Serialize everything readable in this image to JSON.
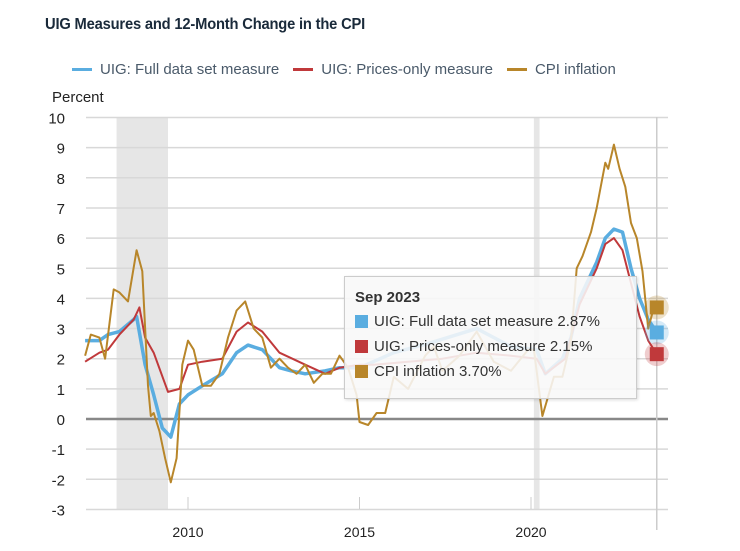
{
  "chart_data": {
    "type": "line",
    "title": "UIG Measures and 12-Month Change in the CPI",
    "ylabel": "Percent",
    "xlabel": "",
    "ylim": [
      -3,
      10
    ],
    "yticks": [
      "10",
      "9",
      "8",
      "7",
      "6",
      "5",
      "4",
      "3",
      "2",
      "1",
      "0",
      "-1",
      "-2",
      "-3"
    ],
    "xticks": [
      "2010",
      "2015",
      "2020"
    ],
    "xlim": [
      "2007-01",
      "2023-09"
    ],
    "grid": true,
    "legend_position": "top",
    "recessions": [
      [
        "2007-12",
        "2009-06"
      ],
      [
        "2020-02",
        "2020-04"
      ]
    ],
    "series": [
      {
        "name": "UIG: Full data set measure",
        "color": "#5aade0",
        "points": [
          [
            "2007-01",
            2.6
          ],
          [
            "2007-06",
            2.6
          ],
          [
            "2007-09",
            2.8
          ],
          [
            "2008-01",
            2.9
          ],
          [
            "2008-06",
            3.3
          ],
          [
            "2008-07",
            3.4
          ],
          [
            "2008-10",
            1.8
          ],
          [
            "2009-01",
            0.8
          ],
          [
            "2009-04",
            -0.3
          ],
          [
            "2009-07",
            -0.6
          ],
          [
            "2009-10",
            0.5
          ],
          [
            "2010-01",
            0.8
          ],
          [
            "2010-06",
            1.1
          ],
          [
            "2011-01",
            1.5
          ],
          [
            "2011-06",
            2.2
          ],
          [
            "2011-10",
            2.45
          ],
          [
            "2012-03",
            2.3
          ],
          [
            "2012-09",
            1.7
          ],
          [
            "2013-01",
            1.6
          ],
          [
            "2013-06",
            1.5
          ],
          [
            "2014-01",
            1.6
          ],
          [
            "2014-06",
            1.7
          ],
          [
            "2015-01",
            1.7
          ],
          [
            "2016-01",
            2.2
          ],
          [
            "2017-01",
            2.5
          ],
          [
            "2018-06",
            3.0
          ],
          [
            "2019-06",
            2.4
          ],
          [
            "2020-03",
            2.3
          ],
          [
            "2020-06",
            1.5
          ],
          [
            "2020-12",
            2.0
          ],
          [
            "2021-03",
            2.7
          ],
          [
            "2021-06",
            4.0
          ],
          [
            "2021-12",
            5.2
          ],
          [
            "2022-03",
            6.0
          ],
          [
            "2022-06",
            6.3
          ],
          [
            "2022-09",
            6.2
          ],
          [
            "2022-12",
            5.0
          ],
          [
            "2023-03",
            4.0
          ],
          [
            "2023-06",
            3.3
          ],
          [
            "2023-09",
            2.87
          ]
        ]
      },
      {
        "name": "UIG: Prices-only measure",
        "color": "#c0393b",
        "points": [
          [
            "2007-01",
            1.9
          ],
          [
            "2007-06",
            2.2
          ],
          [
            "2007-09",
            2.3
          ],
          [
            "2008-01",
            2.8
          ],
          [
            "2008-06",
            3.3
          ],
          [
            "2008-08",
            3.7
          ],
          [
            "2008-10",
            2.7
          ],
          [
            "2009-01",
            2.2
          ],
          [
            "2009-06",
            0.9
          ],
          [
            "2009-10",
            1.0
          ],
          [
            "2010-01",
            1.8
          ],
          [
            "2010-06",
            1.9
          ],
          [
            "2011-01",
            2.0
          ],
          [
            "2011-06",
            2.9
          ],
          [
            "2011-10",
            3.2
          ],
          [
            "2012-03",
            2.9
          ],
          [
            "2012-09",
            2.2
          ],
          [
            "2013-06",
            1.8
          ],
          [
            "2014-01",
            1.5
          ],
          [
            "2014-06",
            1.7
          ],
          [
            "2015-01",
            1.8
          ],
          [
            "2015-06",
            1.8
          ],
          [
            "2016-06",
            1.9
          ],
          [
            "2017-06",
            2.0
          ],
          [
            "2018-06",
            2.2
          ],
          [
            "2019-06",
            2.1
          ],
          [
            "2020-03",
            2.0
          ],
          [
            "2020-06",
            1.5
          ],
          [
            "2021-01",
            2.0
          ],
          [
            "2021-06",
            3.8
          ],
          [
            "2021-12",
            5.0
          ],
          [
            "2022-03",
            5.8
          ],
          [
            "2022-06",
            6.0
          ],
          [
            "2022-09",
            5.6
          ],
          [
            "2022-12",
            4.5
          ],
          [
            "2023-03",
            3.4
          ],
          [
            "2023-06",
            2.6
          ],
          [
            "2023-09",
            2.15
          ]
        ]
      },
      {
        "name": "CPI inflation",
        "color": "#b8862a",
        "points": [
          [
            "2007-01",
            2.1
          ],
          [
            "2007-03",
            2.8
          ],
          [
            "2007-06",
            2.7
          ],
          [
            "2007-08",
            2.0
          ],
          [
            "2007-11",
            4.3
          ],
          [
            "2008-01",
            4.2
          ],
          [
            "2008-04",
            3.9
          ],
          [
            "2008-07",
            5.6
          ],
          [
            "2008-09",
            4.9
          ],
          [
            "2008-11",
            1.1
          ],
          [
            "2008-12",
            0.1
          ],
          [
            "2009-01",
            0.2
          ],
          [
            "2009-03",
            -0.4
          ],
          [
            "2009-05",
            -1.3
          ],
          [
            "2009-07",
            -2.1
          ],
          [
            "2009-09",
            -1.3
          ],
          [
            "2009-11",
            1.8
          ],
          [
            "2010-01",
            2.6
          ],
          [
            "2010-03",
            2.3
          ],
          [
            "2010-06",
            1.1
          ],
          [
            "2010-09",
            1.1
          ],
          [
            "2010-12",
            1.5
          ],
          [
            "2011-03",
            2.7
          ],
          [
            "2011-06",
            3.6
          ],
          [
            "2011-09",
            3.9
          ],
          [
            "2011-12",
            3.0
          ],
          [
            "2012-03",
            2.7
          ],
          [
            "2012-06",
            1.7
          ],
          [
            "2012-09",
            2.0
          ],
          [
            "2012-12",
            1.7
          ],
          [
            "2013-03",
            1.5
          ],
          [
            "2013-06",
            1.8
          ],
          [
            "2013-09",
            1.2
          ],
          [
            "2013-12",
            1.5
          ],
          [
            "2014-03",
            1.5
          ],
          [
            "2014-06",
            2.1
          ],
          [
            "2014-09",
            1.7
          ],
          [
            "2014-12",
            0.8
          ],
          [
            "2015-01",
            -0.1
          ],
          [
            "2015-04",
            -0.2
          ],
          [
            "2015-07",
            0.2
          ],
          [
            "2015-10",
            0.2
          ],
          [
            "2016-01",
            1.4
          ],
          [
            "2016-06",
            1.0
          ],
          [
            "2016-12",
            2.1
          ],
          [
            "2017-03",
            2.4
          ],
          [
            "2017-06",
            1.6
          ],
          [
            "2017-12",
            2.1
          ],
          [
            "2018-06",
            2.9
          ],
          [
            "2018-12",
            1.9
          ],
          [
            "2019-06",
            1.6
          ],
          [
            "2019-12",
            2.3
          ],
          [
            "2020-02",
            2.3
          ],
          [
            "2020-05",
            0.1
          ],
          [
            "2020-09",
            1.4
          ],
          [
            "2020-12",
            1.4
          ],
          [
            "2021-03",
            2.6
          ],
          [
            "2021-05",
            5.0
          ],
          [
            "2021-07",
            5.4
          ],
          [
            "2021-10",
            6.2
          ],
          [
            "2021-12",
            7.0
          ],
          [
            "2022-03",
            8.5
          ],
          [
            "2022-04",
            8.3
          ],
          [
            "2022-06",
            9.1
          ],
          [
            "2022-08",
            8.3
          ],
          [
            "2022-10",
            7.7
          ],
          [
            "2022-12",
            6.5
          ],
          [
            "2023-02",
            6.0
          ],
          [
            "2023-04",
            4.9
          ],
          [
            "2023-06",
            3.0
          ],
          [
            "2023-08",
            3.7
          ],
          [
            "2023-09",
            3.7
          ]
        ]
      }
    ],
    "tooltip": {
      "date": "Sep 2023",
      "rows": [
        {
          "label": "UIG: Full data set measure 2.87%",
          "color": "#5aade0"
        },
        {
          "label": "UIG: Prices-only measure 2.15%",
          "color": "#c0393b"
        },
        {
          "label": "CPI inflation 3.70%",
          "color": "#b8862a"
        }
      ]
    }
  }
}
